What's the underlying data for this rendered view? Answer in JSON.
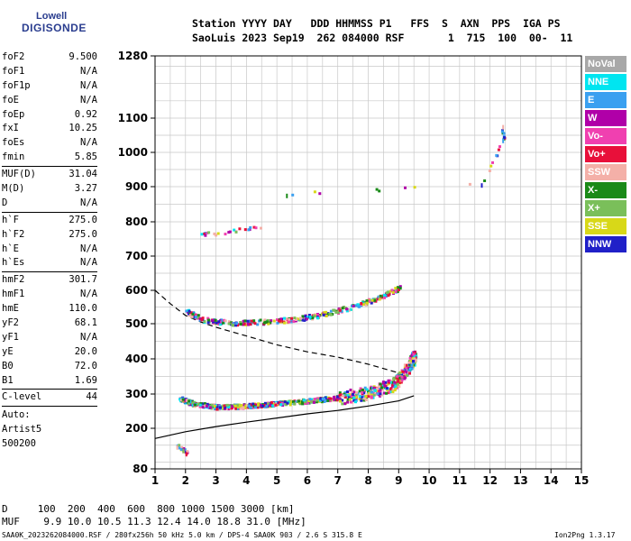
{
  "logo": {
    "line1": "Lowell",
    "line2": "DIGISONDE"
  },
  "header": {
    "row1": "Station YYYY DAY   DDD HHMMSS P1   FFS  S  AXN  PPS  IGA PS",
    "row2": "SaoLuis 2023 Sep19  262 084000 RSF       1  715  100  00-  11"
  },
  "params": [
    {
      "label": "foF2",
      "value": "9.500"
    },
    {
      "label": "foF1",
      "value": "N/A"
    },
    {
      "label": "foF1p",
      "value": "N/A"
    },
    {
      "label": "foE",
      "value": "N/A"
    },
    {
      "label": "foEp",
      "value": "0.92"
    },
    {
      "label": "fxI",
      "value": "10.25"
    },
    {
      "label": "foEs",
      "value": "N/A"
    },
    {
      "label": "fmin",
      "value": "5.85"
    },
    {
      "sep": true
    },
    {
      "label": "MUF(D)",
      "value": "31.04"
    },
    {
      "label": "M(D)",
      "value": "3.27"
    },
    {
      "label": "D",
      "value": "N/A"
    },
    {
      "sep": true
    },
    {
      "label": "h`F",
      "value": "275.0"
    },
    {
      "label": "h`F2",
      "value": "275.0"
    },
    {
      "label": "h`E",
      "value": "N/A"
    },
    {
      "label": "h`Es",
      "value": "N/A"
    },
    {
      "sep": true
    },
    {
      "label": "hmF2",
      "value": "301.7"
    },
    {
      "label": "hmF1",
      "value": "N/A"
    },
    {
      "label": "hmE",
      "value": "110.0"
    },
    {
      "label": "yF2",
      "value": "68.1"
    },
    {
      "label": "yF1",
      "value": "N/A"
    },
    {
      "label": "yE",
      "value": "20.0"
    },
    {
      "label": "B0",
      "value": "72.0"
    },
    {
      "label": "B1",
      "value": "1.69"
    },
    {
      "sep": true
    },
    {
      "label": "C-level",
      "value": "44"
    },
    {
      "sep": true
    }
  ],
  "auto": [
    "Auto:",
    "Artist5",
    "500200"
  ],
  "legend": [
    {
      "label": "NoVal",
      "color": "#a8a8a8"
    },
    {
      "label": "NNE",
      "color": "#00e5f0"
    },
    {
      "label": "E",
      "color": "#3aa0f0"
    },
    {
      "label": "W",
      "color": "#b000a8"
    },
    {
      "label": "Vo-",
      "color": "#f040b0"
    },
    {
      "label": "Vo+",
      "color": "#e8103a"
    },
    {
      "label": "SSW",
      "color": "#f4b0a8"
    },
    {
      "label": "X-",
      "color": "#1a8a18"
    },
    {
      "label": "X+",
      "color": "#7abf5a"
    },
    {
      "label": "SSE",
      "color": "#d8d818"
    },
    {
      "label": "NNW",
      "color": "#2020c8"
    }
  ],
  "bottom": {
    "row1": "D     100  200  400  600  800 1000 1500 3000 [km]",
    "row2": "MUF    9.9 10.0 10.5 11.3 12.4 14.0 18.8 31.0 [MHz]"
  },
  "footer": {
    "left": "SAA0K_2023262084000.RSF / 280fx256h 50 kHz 5.0 km / DPS-4 SAA0K 903 / 2.6 S 315.8 E",
    "right": "Ion2Png 1.3.17"
  },
  "chart_data": {
    "type": "scatter",
    "title": "",
    "xlabel": "",
    "ylabel": "",
    "xlim": [
      1,
      15
    ],
    "ylim": [
      80,
      1280
    ],
    "y_scale": "custom (compressed above 600 km)",
    "x_ticks": [
      "1",
      "2",
      "3",
      "4",
      "5",
      "6",
      "7",
      "8",
      "9",
      "10",
      "11",
      "12",
      "13",
      "14",
      "15"
    ],
    "y_ticks": [
      "80",
      "200",
      "300",
      "400",
      "500",
      "600",
      "700",
      "800",
      "900",
      "1000",
      "1100",
      "1280"
    ],
    "grid": true,
    "series": [
      {
        "type": "line",
        "style": "solid",
        "points": [
          [
            1.0,
            170
          ],
          [
            2.0,
            190
          ],
          [
            3.0,
            205
          ],
          [
            4.0,
            218
          ],
          [
            5.0,
            230
          ],
          [
            6.0,
            242
          ],
          [
            7.0,
            252
          ],
          [
            8.0,
            265
          ],
          [
            9.0,
            280
          ],
          [
            9.5,
            295
          ]
        ]
      },
      {
        "type": "line",
        "style": "dashed",
        "points": [
          [
            1.0,
            600
          ],
          [
            1.5,
            560
          ],
          [
            2.0,
            525
          ],
          [
            2.5,
            505
          ],
          [
            3.0,
            490
          ],
          [
            4.0,
            465
          ],
          [
            5.0,
            440
          ],
          [
            6.0,
            420
          ],
          [
            7.0,
            405
          ],
          [
            8.0,
            385
          ],
          [
            9.0,
            360
          ]
        ]
      }
    ],
    "echo_traces": [
      {
        "name_hint": "F2 first hop",
        "points": [
          [
            1.8,
            290
          ],
          [
            2.2,
            275
          ],
          [
            3.0,
            265
          ],
          [
            4.0,
            268
          ],
          [
            5.0,
            275
          ],
          [
            6.0,
            283
          ],
          [
            7.0,
            292
          ],
          [
            8.0,
            305
          ],
          [
            8.8,
            330
          ],
          [
            9.3,
            380
          ],
          [
            9.5,
            410
          ]
        ]
      },
      {
        "name_hint": "F2 second hop",
        "points": [
          [
            2.0,
            540
          ],
          [
            2.5,
            515
          ],
          [
            3.5,
            505
          ],
          [
            4.5,
            508
          ],
          [
            5.5,
            515
          ],
          [
            6.5,
            530
          ],
          [
            7.5,
            555
          ],
          [
            8.3,
            580
          ],
          [
            9.0,
            610
          ]
        ]
      },
      {
        "name_hint": "high echoes",
        "points": [
          [
            2.5,
            770
          ],
          [
            3.0,
            765
          ],
          [
            3.8,
            780
          ],
          [
            4.5,
            790
          ]
        ]
      },
      {
        "name_hint": "low echoes",
        "points": [
          [
            1.7,
            150
          ],
          [
            1.9,
            140
          ],
          [
            2.0,
            130
          ]
        ]
      },
      {
        "name_hint": "isolated",
        "points": [
          [
            12.4,
            1080
          ],
          [
            12.4,
            1040
          ],
          [
            11.7,
            910
          ],
          [
            5.3,
            880
          ]
        ]
      }
    ]
  }
}
